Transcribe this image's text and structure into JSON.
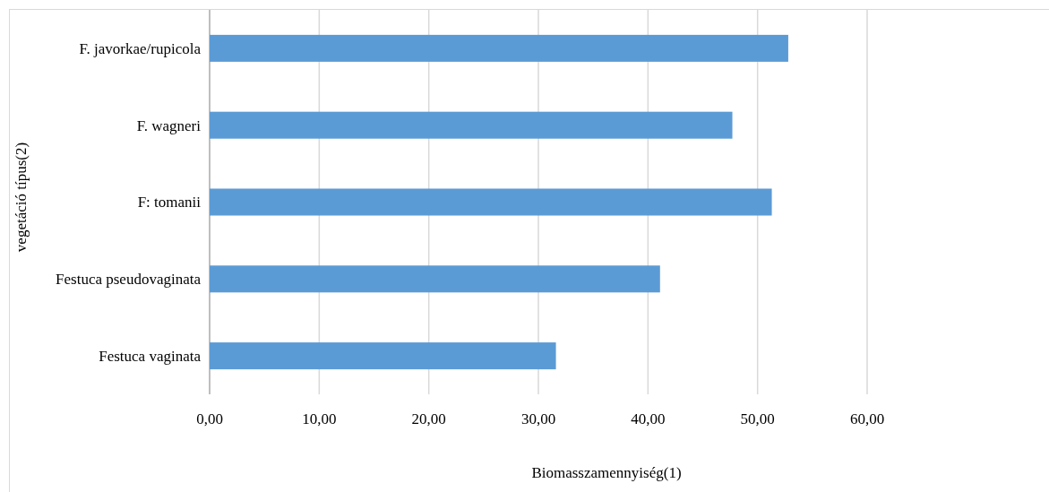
{
  "chart_data": {
    "type": "bar",
    "orientation": "horizontal",
    "xlabel": "Biomasszamennyiség(1)",
    "ylabel": "vegetáció típus(2)",
    "categories": [
      "F. javorkae/rupicola",
      "F. wagneri",
      "F: tomanii",
      "Festuca pseudovaginata",
      "Festuca vaginata"
    ],
    "values": [
      52.8,
      47.7,
      51.3,
      41.1,
      31.6
    ],
    "color": "#5b9bd5",
    "xlim": [
      0,
      60
    ],
    "xticks": [
      {
        "value": 0,
        "label": "0,00"
      },
      {
        "value": 10,
        "label": "10,00"
      },
      {
        "value": 20,
        "label": "20,00"
      },
      {
        "value": 30,
        "label": "30,00"
      },
      {
        "value": 40,
        "label": "40,00"
      },
      {
        "value": 50,
        "label": "50,00"
      },
      {
        "value": 60,
        "label": "60,00"
      }
    ],
    "grid": "x"
  }
}
